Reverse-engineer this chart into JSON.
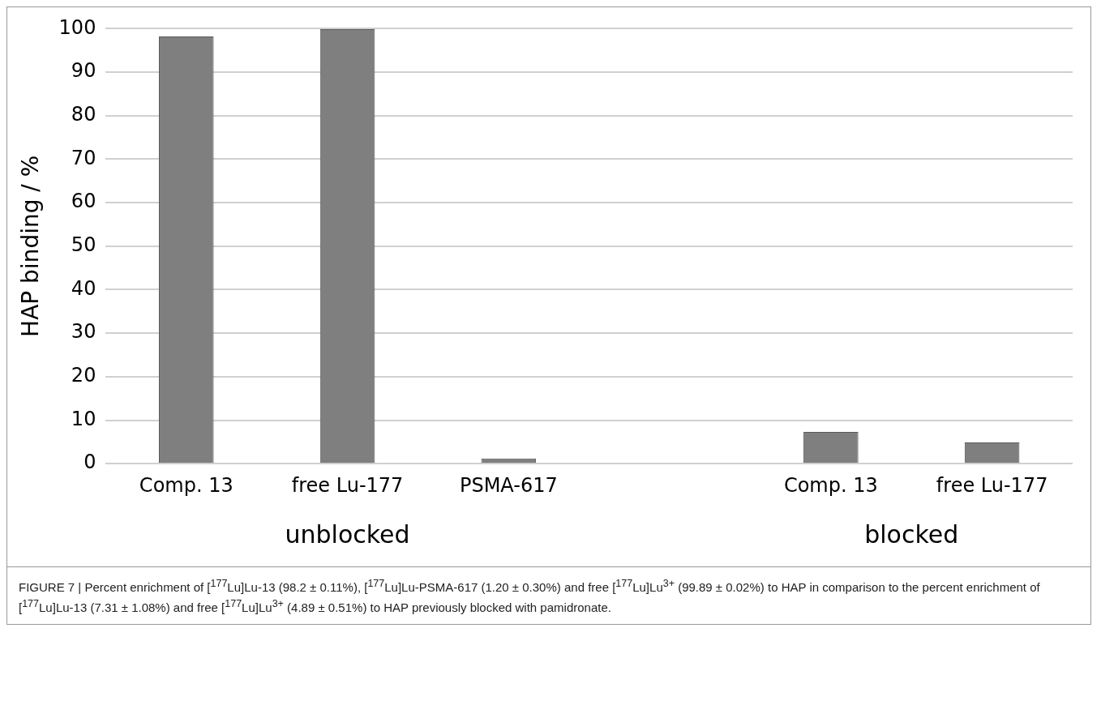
{
  "chart_data": {
    "type": "bar",
    "ylabel": "HAP binding / %",
    "categories": [
      "Comp. 13",
      "free Lu-177",
      "PSMA-617",
      null,
      "Comp. 13",
      "free Lu-177"
    ],
    "values": [
      98.2,
      99.89,
      1.2,
      null,
      7.31,
      4.89
    ],
    "color": "#7f7f7f",
    "ylim": [
      0,
      100
    ],
    "yticks": [
      0,
      10,
      20,
      30,
      40,
      50,
      60,
      70,
      80,
      90,
      100
    ],
    "grid": "y",
    "legend": false,
    "annotations": [
      "unblocked",
      "blocked",
      "FIGURE 7 | Percent enrichment of [$^{177}$Lu]Lu-13 (98.2 ± 0.11%), [$^{177}$Lu]Lu-PSMA-617 (1.20 ± 0.30%) and free [$^{177}$Lu]Lu$^{3+}$ (99.89 ± 0.02%) to HAP in comparison to the percent enrichment of [$^{177}$Lu]Lu-13 (7.31 ± 1.08%) and free [$^{177}$Lu]Lu$^{3+}$ (4.89 ± 0.51%) to HAP previously blocked with pamidronate."
    ]
  }
}
